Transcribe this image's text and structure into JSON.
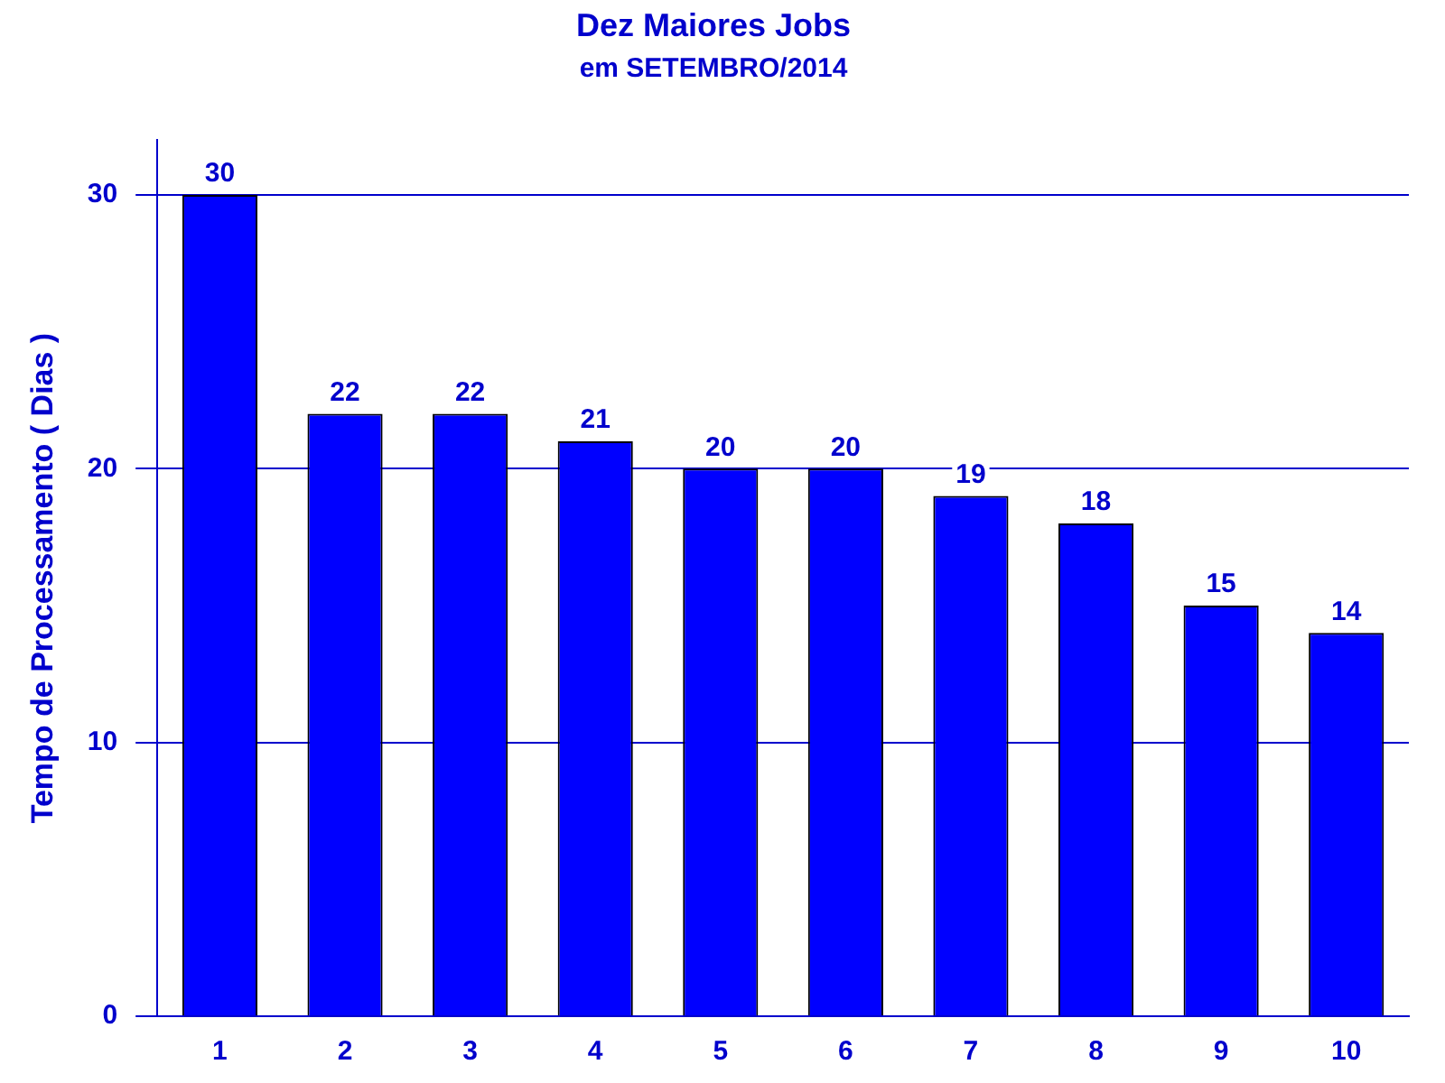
{
  "chart_data": {
    "type": "bar",
    "title": "Dez Maiores Jobs",
    "subtitle": "em SETEMBRO/2014",
    "ylabel": "Tempo de Processamento ( Dias )",
    "categories": [
      "1",
      "2",
      "3",
      "4",
      "5",
      "6",
      "7",
      "8",
      "9",
      "10"
    ],
    "values": [
      30,
      22,
      22,
      21,
      20,
      20,
      19,
      18,
      15,
      14
    ],
    "color": "#0000ff",
    "ylim": [
      0,
      32
    ],
    "yticks": [
      0,
      10,
      20,
      30
    ],
    "grid": "y",
    "data_labels": true,
    "legend": false
  }
}
